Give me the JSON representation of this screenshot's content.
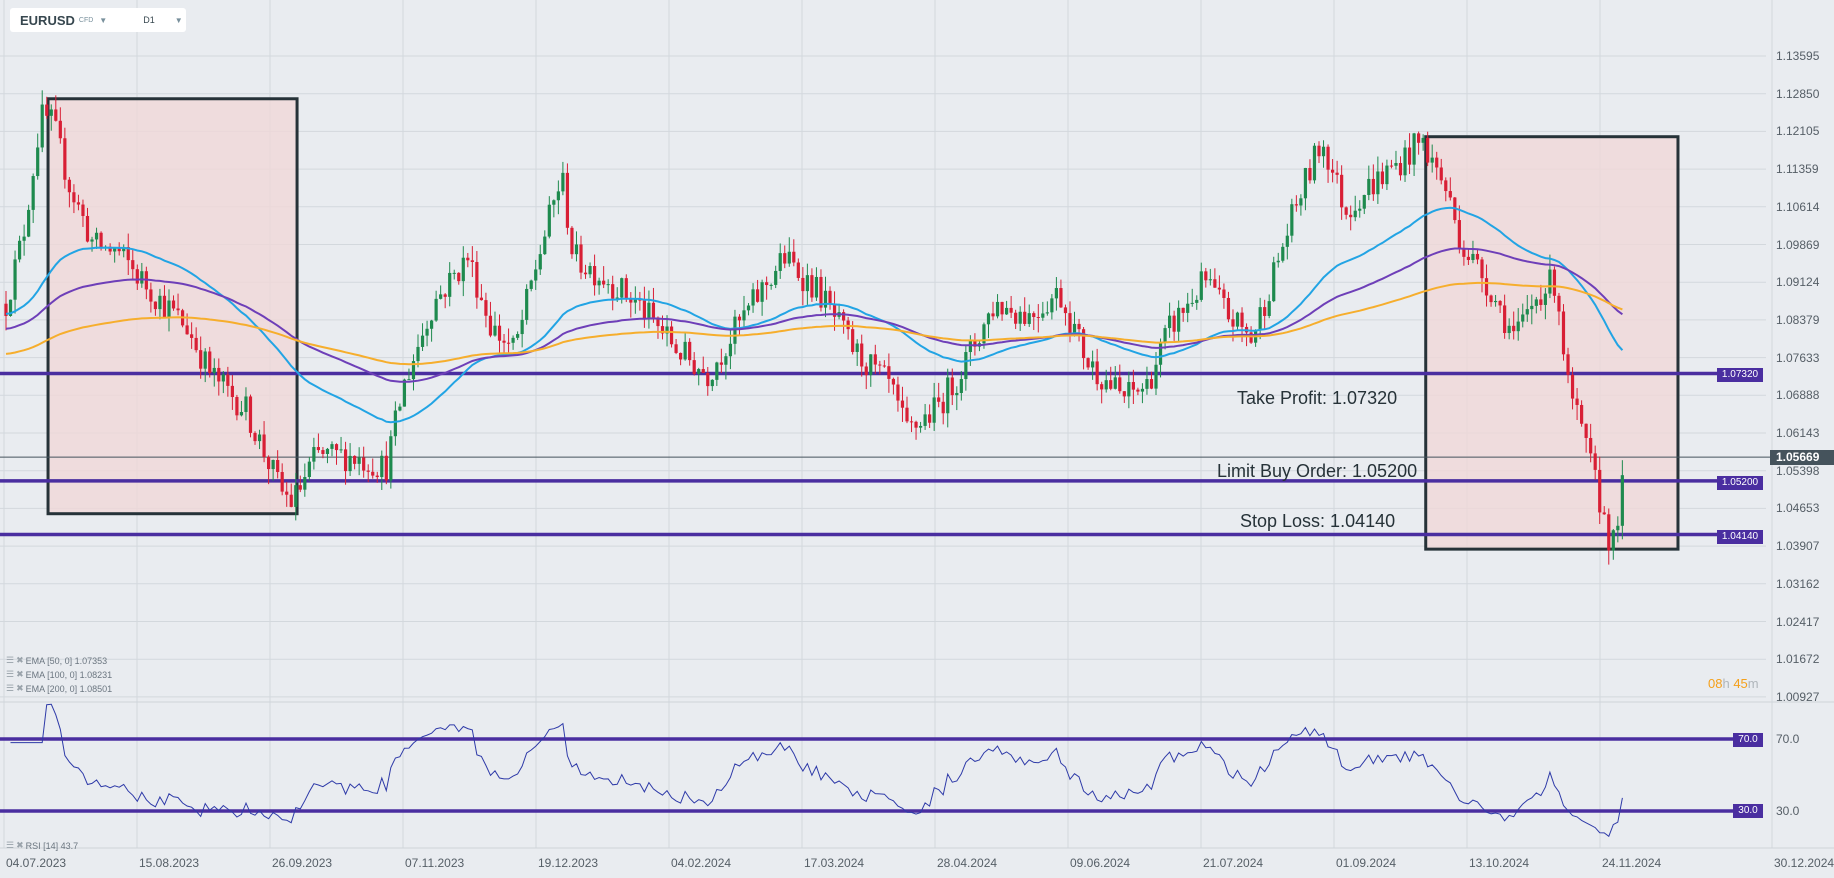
{
  "header": {
    "symbol": "EURUSD",
    "instrument_type": "CFD",
    "timeframe": "D1"
  },
  "price_axis": [
    "1.13595",
    "1.12850",
    "1.12105",
    "1.11359",
    "1.10614",
    "1.09869",
    "1.09124",
    "1.08379",
    "1.07633",
    "1.06888",
    "1.06143",
    "1.05398",
    "1.04653",
    "1.03907",
    "1.03162",
    "1.02417",
    "1.01672",
    "1.00927"
  ],
  "rsi_axis": [
    "70.0",
    "30.0"
  ],
  "date_axis": [
    "04.07.2023",
    "15.08.2023",
    "26.09.2023",
    "07.11.2023",
    "19.12.2023",
    "04.02.2024",
    "17.03.2024",
    "28.04.2024",
    "09.06.2024",
    "21.07.2024",
    "01.09.2024",
    "13.10.2024",
    "24.11.2024",
    "30.12.2024"
  ],
  "current_price": "1.05669",
  "countdown": {
    "hours": "08",
    "h": "h",
    "minutes": "45",
    "m": "m"
  },
  "levels": [
    {
      "price": 1.0732,
      "label": "1.07320",
      "annotation": "Take Profit: 1.07320"
    },
    {
      "price": 1.052,
      "label": "1.05200",
      "annotation": "Limit Buy Order: 1.05200"
    },
    {
      "price": 1.0414,
      "label": "1.04140",
      "annotation": "Stop Loss: 1.04140"
    }
  ],
  "rsi_levels": [
    {
      "value": 70,
      "label": "70.0"
    },
    {
      "value": 30,
      "label": "30.0"
    }
  ],
  "legends": {
    "ema50": "EMA  [50,  0]  1.07353",
    "ema100": "EMA  [100,  0]  1.08231",
    "ema200": "EMA  [200,  0]  1.08501",
    "rsi": "RSI  [14]  43.7"
  },
  "colors": {
    "up": "#1e8a4e",
    "down": "#d81f35",
    "ema50": "#22a4e4",
    "ema100": "#6e3fb8",
    "ema200": "#f6ae2d",
    "level": "#4a2ea0",
    "box_fill": "#f0d8d8",
    "rsi": "#2e3aa8"
  },
  "chart_data": {
    "type": "candlestick",
    "y_range": [
      1.00927,
      1.13595
    ],
    "price_keypoints": [
      [
        0,
        1.087
      ],
      [
        5.4,
        1.1008
      ],
      [
        10.8,
        1.1239
      ],
      [
        14.4,
        1.1228
      ],
      [
        19.8,
        1.1101
      ],
      [
        27.1,
        1.0985
      ],
      [
        34.3,
        1.0974
      ],
      [
        45.2,
        1.0893
      ],
      [
        56,
        1.0823
      ],
      [
        63.3,
        1.0731
      ],
      [
        74.1,
        1.0662
      ],
      [
        85,
        1.05
      ],
      [
        88.6,
        1.0477
      ],
      [
        95.8,
        1.0569
      ],
      [
        106.7,
        1.0569
      ],
      [
        117.5,
        1.0546
      ],
      [
        123,
        1.0708
      ],
      [
        132,
        1.087
      ],
      [
        142.9,
        1.0962
      ],
      [
        150.1,
        1.0823
      ],
      [
        157.3,
        1.0777
      ],
      [
        164.6,
        1.0962
      ],
      [
        171.8,
        1.1124
      ],
      [
        175.4,
        1.0962
      ],
      [
        186.3,
        1.0916
      ],
      [
        195.3,
        1.087
      ],
      [
        208,
        1.0777
      ],
      [
        217,
        1.0731
      ],
      [
        226,
        1.0823
      ],
      [
        240.5,
        1.0962
      ],
      [
        251.4,
        1.0893
      ],
      [
        262.2,
        1.0777
      ],
      [
        273.1,
        1.0708
      ],
      [
        278.5,
        1.0615
      ],
      [
        287.6,
        1.0662
      ],
      [
        294.8,
        1.0731
      ],
      [
        305.7,
        1.087
      ],
      [
        316.5,
        1.0847
      ],
      [
        325.6,
        1.0893
      ],
      [
        334.6,
        1.0754
      ],
      [
        345.5,
        1.0685
      ],
      [
        352.7,
        1.0708
      ],
      [
        360,
        1.0823
      ],
      [
        370.8,
        1.0916
      ],
      [
        378,
        1.0847
      ],
      [
        385.3,
        1.08
      ],
      [
        392.5,
        1.0939
      ],
      [
        399.7,
        1.1078
      ],
      [
        407,
        1.1193
      ],
      [
        414.2,
        1.1054
      ],
      [
        421.4,
        1.1101
      ],
      [
        430.5,
        1.1147
      ],
      [
        437.7,
        1.1193
      ],
      [
        445,
        1.1101
      ],
      [
        450.4,
        1.0985
      ],
      [
        457.6,
        1.0916
      ],
      [
        466.7,
        1.08
      ],
      [
        473.9,
        1.0893
      ],
      [
        479.3,
        1.0916
      ],
      [
        482.9,
        1.0708
      ],
      [
        490.2,
        1.0546
      ],
      [
        496.7,
        1.0384
      ],
      [
        499.2,
        1.0477
      ],
      [
        501,
        1.0567
      ]
    ],
    "ema": [
      {
        "period": 50,
        "seed": 1.085
      },
      {
        "period": 100,
        "seed": 1.082
      },
      {
        "period": 200,
        "seed": 1.077
      }
    ],
    "rsi_period": 14,
    "boxes": [
      {
        "from_day": 13,
        "to_day": 90,
        "high": 1.1275,
        "low": 1.0455
      },
      {
        "from_day": 439,
        "to_day": 517,
        "high": 1.12,
        "low": 1.0385
      }
    ]
  }
}
